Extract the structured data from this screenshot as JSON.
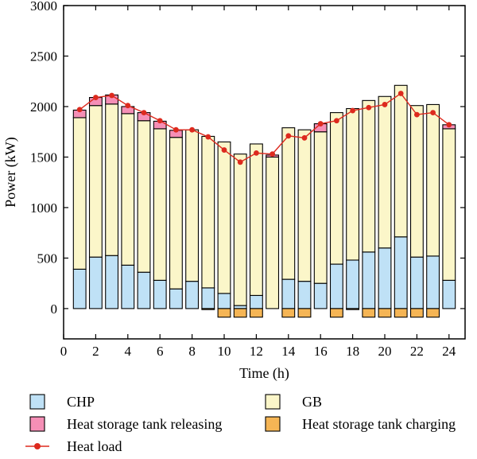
{
  "chart_data": {
    "type": "bar",
    "subtype": "stacked bar with line overlay",
    "xlabel": "Time (h)",
    "ylabel": "Power (kW)",
    "xlim": [
      0,
      25
    ],
    "ylim": [
      -300,
      3000
    ],
    "xticks": [
      0,
      2,
      4,
      6,
      8,
      10,
      12,
      14,
      16,
      18,
      20,
      22,
      24
    ],
    "yticks": [
      0,
      500,
      1000,
      1500,
      2000,
      2500,
      3000
    ],
    "grid": false,
    "legend_position": "bottom",
    "x": [
      1,
      2,
      3,
      4,
      5,
      6,
      7,
      8,
      9,
      10,
      11,
      12,
      13,
      14,
      15,
      16,
      17,
      18,
      19,
      20,
      21,
      22,
      23,
      24
    ],
    "series": [
      {
        "name": "CHP",
        "kind": "bar",
        "color": "#bfe1f6",
        "values": [
          390,
          510,
          525,
          430,
          360,
          280,
          195,
          270,
          205,
          150,
          30,
          130,
          0,
          290,
          270,
          250,
          440,
          480,
          560,
          600,
          710,
          510,
          520,
          280
        ]
      },
      {
        "name": "GB",
        "kind": "bar",
        "color": "#fbf6c9",
        "values": [
          1500,
          1500,
          1500,
          1500,
          1500,
          1500,
          1500,
          1500,
          1500,
          1500,
          1500,
          1500,
          1500,
          1500,
          1500,
          1500,
          1500,
          1500,
          1500,
          1500,
          1500,
          1500,
          1500,
          1500
        ]
      },
      {
        "name": "Heat storage tank releasing",
        "kind": "bar",
        "color": "#f58fb6",
        "values": [
          75,
          80,
          90,
          70,
          80,
          75,
          70,
          0,
          0,
          0,
          0,
          0,
          20,
          0,
          0,
          80,
          0,
          0,
          0,
          0,
          0,
          0,
          0,
          40
        ]
      },
      {
        "name": "Heat storage tank charging",
        "kind": "bar",
        "color": "#f5b555",
        "values": [
          0,
          0,
          0,
          0,
          0,
          0,
          0,
          0,
          -10,
          -85,
          -85,
          -85,
          0,
          -85,
          -85,
          0,
          -85,
          -10,
          -85,
          -85,
          -85,
          -85,
          -85,
          0
        ]
      },
      {
        "name": "Heat load",
        "kind": "line",
        "color": "#dd2a1e",
        "values": [
          1970,
          2090,
          2110,
          2010,
          1940,
          1860,
          1770,
          1770,
          1700,
          1570,
          1450,
          1540,
          1530,
          1710,
          1690,
          1830,
          1860,
          1960,
          1990,
          2020,
          2130,
          1920,
          1940,
          1820
        ]
      }
    ]
  },
  "legend": [
    {
      "label": "CHP",
      "swatch": "box",
      "color": "#bfe1f6"
    },
    {
      "label": "GB",
      "swatch": "box",
      "color": "#fbf6c9"
    },
    {
      "label": "Heat storage tank releasing",
      "swatch": "box",
      "color": "#f58fb6"
    },
    {
      "label": "Heat storage tank charging",
      "swatch": "box",
      "color": "#f5b555"
    },
    {
      "label": "Heat load",
      "swatch": "line-marker",
      "color": "#dd2a1e"
    }
  ]
}
